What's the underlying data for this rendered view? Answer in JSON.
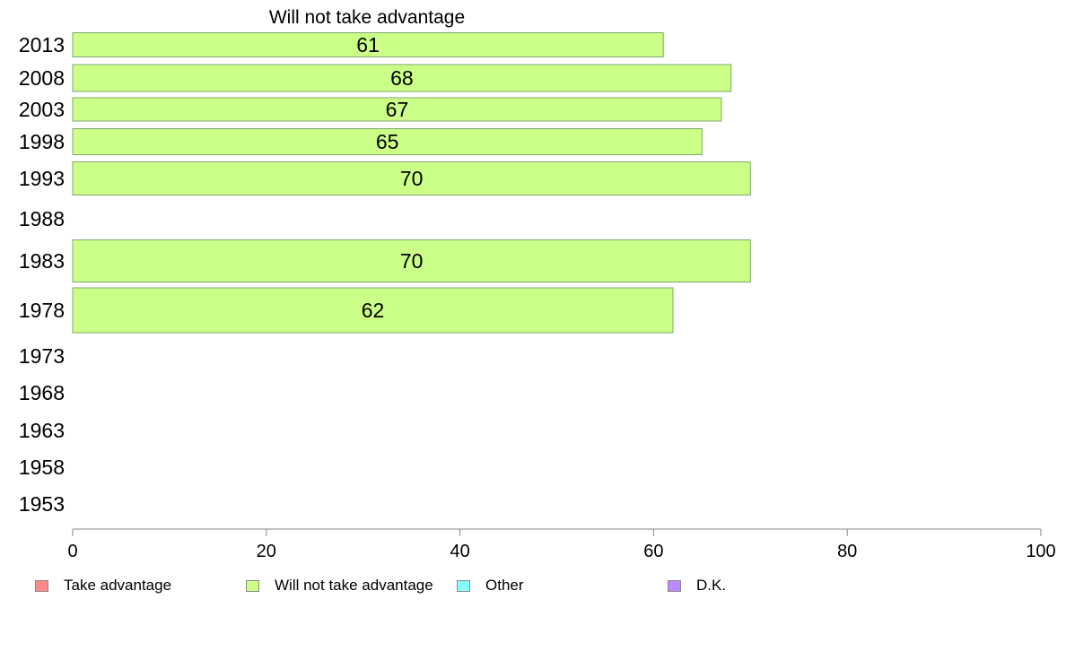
{
  "chart_data": {
    "type": "bar",
    "orientation": "horizontal",
    "title": "Will not take advantage",
    "categories": [
      "2013",
      "2008",
      "2003",
      "1998",
      "1993",
      "1988",
      "1983",
      "1978",
      "1973",
      "1968",
      "1963",
      "1958",
      "1953"
    ],
    "series": [
      {
        "name": "Will not take advantage",
        "color": "#ccff88",
        "values": [
          61,
          68,
          67,
          65,
          70,
          null,
          70,
          62,
          null,
          null,
          null,
          null,
          null
        ]
      }
    ],
    "data_labels": [
      "61",
      "68",
      "67",
      "65",
      "70",
      "",
      "70",
      "62",
      "",
      "",
      "",
      "",
      ""
    ],
    "xlim": [
      0,
      100
    ],
    "xticks": [
      0,
      20,
      40,
      60,
      80,
      100
    ],
    "xtick_labels": [
      "0",
      "20",
      "40",
      "60",
      "80",
      "100"
    ],
    "grid": false,
    "legend_position": "bottom"
  },
  "legend": [
    {
      "label": "Take advantage",
      "color": "#ff8888"
    },
    {
      "label": "Will not take advantage",
      "color": "#ccff88"
    },
    {
      "label": "Other",
      "color": "#88ffff"
    },
    {
      "label": "D.K.",
      "color": "#bb88ff"
    }
  ]
}
